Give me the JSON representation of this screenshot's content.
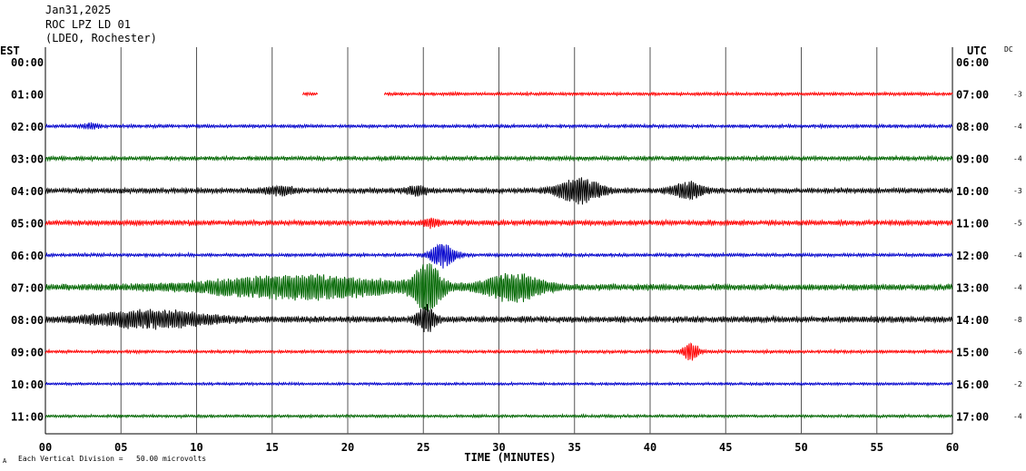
{
  "header": {
    "date": "Jan31,2025",
    "station": "ROC LPZ LD 01",
    "network": "(LDEO, Rochester)"
  },
  "left_axis_label": "EST",
  "right_axis_label": "UTC",
  "dc_label": "DC",
  "footer": {
    "scale_note": "Each Vertical Division =   50.00 microvolts",
    "corner_mark": "A"
  },
  "chart_data": {
    "type": "line",
    "title": "",
    "xlabel": "TIME (MINUTES)",
    "xlim": [
      0,
      60
    ],
    "x_ticks": [
      "00",
      "05",
      "10",
      "15",
      "20",
      "25",
      "30",
      "35",
      "40",
      "45",
      "50",
      "55",
      "60"
    ],
    "gridlines": "vertical every 5 minutes",
    "series_colors": [
      "#ff0000",
      "#0000cc",
      "#006600",
      "#000000"
    ],
    "rows": [
      {
        "est": "00:00",
        "utc": "06:00",
        "dc": "",
        "color": "#ff0000",
        "segments": [],
        "events": []
      },
      {
        "est": "01:00",
        "utc": "07:00",
        "dc": "-3",
        "color": "#ff0000",
        "segments": [
          [
            17.0,
            18.0
          ],
          [
            22.4,
            60
          ]
        ],
        "base_amp": 1.5,
        "events": []
      },
      {
        "est": "02:00",
        "utc": "08:00",
        "dc": "-4",
        "color": "#0000cc",
        "segments": [
          [
            0,
            60
          ]
        ],
        "base_amp": 1.6,
        "events": [
          {
            "t": 3.0,
            "amp": 3,
            "dur": 1.0
          }
        ]
      },
      {
        "est": "03:00",
        "utc": "09:00",
        "dc": "-4",
        "color": "#006600",
        "segments": [
          [
            0,
            60
          ]
        ],
        "base_amp": 2.0,
        "events": []
      },
      {
        "est": "04:00",
        "utc": "10:00",
        "dc": "-3",
        "color": "#000000",
        "segments": [
          [
            0,
            60
          ]
        ],
        "base_amp": 2.5,
        "events": [
          {
            "t": 15.5,
            "amp": 4,
            "dur": 2.0
          },
          {
            "t": 24.5,
            "amp": 4,
            "dur": 1.5
          },
          {
            "t": 35.3,
            "amp": 13,
            "dur": 3.0
          },
          {
            "t": 42.5,
            "amp": 9,
            "dur": 2.0
          }
        ]
      },
      {
        "est": "05:00",
        "utc": "11:00",
        "dc": "-5",
        "color": "#ff0000",
        "segments": [
          [
            0,
            60
          ]
        ],
        "base_amp": 2.5,
        "events": [
          {
            "t": 25.5,
            "amp": 4,
            "dur": 1.0
          }
        ]
      },
      {
        "est": "06:00",
        "utc": "12:00",
        "dc": "-4",
        "color": "#0000cc",
        "segments": [
          [
            0,
            60
          ]
        ],
        "base_amp": 1.6,
        "events": [
          {
            "t": 26.3,
            "amp": 14,
            "dur": 1.6
          }
        ]
      },
      {
        "est": "07:00",
        "utc": "13:00",
        "dc": "-4",
        "color": "#006600",
        "segments": [
          [
            0,
            60
          ]
        ],
        "base_amp": 3.0,
        "events": [
          {
            "t": 17.0,
            "amp": 12,
            "dur": 14.0
          },
          {
            "t": 25.3,
            "amp": 26,
            "dur": 1.8
          },
          {
            "t": 31.0,
            "amp": 15,
            "dur": 4.0
          }
        ]
      },
      {
        "est": "08:00",
        "utc": "14:00",
        "dc": "-8",
        "color": "#000000",
        "segments": [
          [
            0,
            60
          ]
        ],
        "base_amp": 3.0,
        "events": [
          {
            "t": 7.0,
            "amp": 9,
            "dur": 8.0
          },
          {
            "t": 25.2,
            "amp": 14,
            "dur": 1.2
          }
        ]
      },
      {
        "est": "09:00",
        "utc": "15:00",
        "dc": "-6",
        "color": "#ff0000",
        "segments": [
          [
            0,
            60
          ]
        ],
        "base_amp": 1.5,
        "events": [
          {
            "t": 42.7,
            "amp": 11,
            "dur": 1.0
          }
        ]
      },
      {
        "est": "10:00",
        "utc": "16:00",
        "dc": "-2",
        "color": "#0000cc",
        "segments": [
          [
            0,
            60
          ]
        ],
        "base_amp": 1.3,
        "events": []
      },
      {
        "est": "11:00",
        "utc": "17:00",
        "dc": "-4",
        "color": "#006600",
        "segments": [
          [
            0,
            60
          ]
        ],
        "base_amp": 1.4,
        "events": []
      }
    ]
  }
}
